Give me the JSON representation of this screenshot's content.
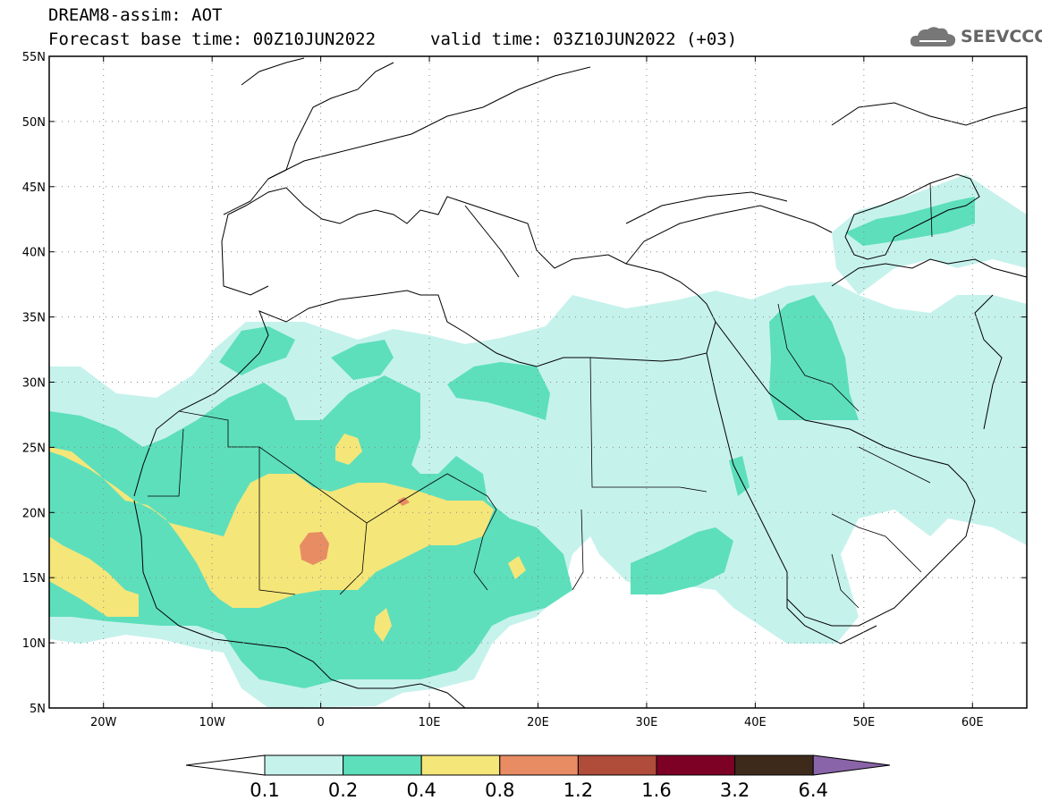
{
  "header": {
    "model_line": "DREAM8-assim: AOT",
    "base_line": "Forecast base time: 00Z10JUN2022",
    "valid_line": "valid time: 03Z10JUN2022 (+03)",
    "logo_text": "SEEVCCC"
  },
  "map": {
    "lon_range": [
      -25,
      65
    ],
    "lat_range": [
      5,
      55
    ],
    "lat_ticks": [
      {
        "label": "55N",
        "value": 55
      },
      {
        "label": "50N",
        "value": 50
      },
      {
        "label": "45N",
        "value": 45
      },
      {
        "label": "40N",
        "value": 40
      },
      {
        "label": "35N",
        "value": 35
      },
      {
        "label": "30N",
        "value": 30
      },
      {
        "label": "25N",
        "value": 25
      },
      {
        "label": "20N",
        "value": 20
      },
      {
        "label": "15N",
        "value": 15
      },
      {
        "label": "10N",
        "value": 10
      },
      {
        "label": "5N",
        "value": 5
      }
    ],
    "lon_ticks": [
      {
        "label": "20W",
        "value": -20
      },
      {
        "label": "10W",
        "value": -10
      },
      {
        "label": "0",
        "value": 0
      },
      {
        "label": "10E",
        "value": 10
      },
      {
        "label": "20E",
        "value": 20
      },
      {
        "label": "30E",
        "value": 30
      },
      {
        "label": "40E",
        "value": 40
      },
      {
        "label": "50E",
        "value": 50
      },
      {
        "label": "60E",
        "value": 60
      }
    ],
    "grid": "dotted"
  },
  "colorbar": {
    "labels": [
      "0.1",
      "0.2",
      "0.4",
      "0.8",
      "1.2",
      "1.6",
      "3.2",
      "6.4"
    ],
    "colors": [
      "#c6f2ec",
      "#5ddfbb",
      "#f5e67a",
      "#e88c64",
      "#b04c3a",
      "#7d0025",
      "#3d2a1a"
    ],
    "over_color": "#8a64a8",
    "under_color": "#ffffff"
  }
}
